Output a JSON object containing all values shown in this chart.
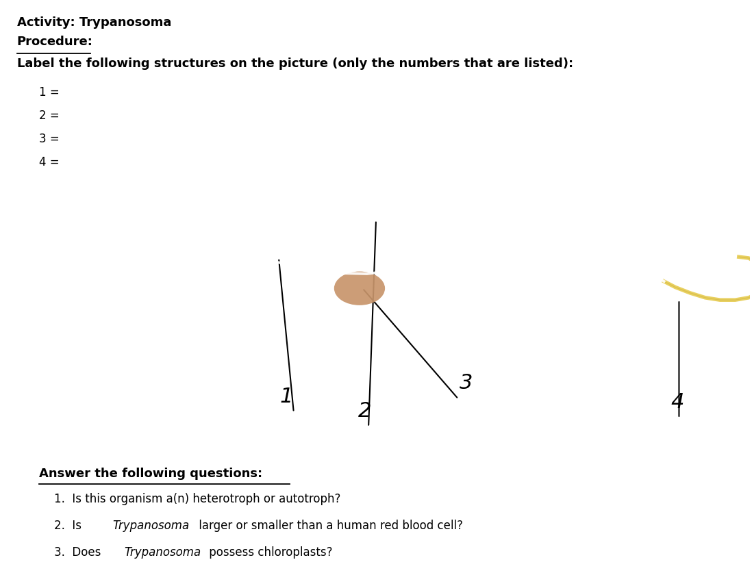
{
  "title_line1": "Activity: Trypanosoma",
  "title_line2": "Procedure:",
  "title_line3": "Label the following structures on the picture (only the numbers that are listed):",
  "labels": [
    "1 =",
    "2 =",
    "3 =",
    "4 ="
  ],
  "answer_header": "Answer the following questions:",
  "q1": "1.  Is this organism a(n) heterotroph or autotroph?",
  "q2_pre": "2.  Is ",
  "q2_italic": "Trypanosoma",
  "q2_post": " larger or smaller than a human red blood cell?",
  "q3_pre": "3.  Does ",
  "q3_italic": "Trypanosoma",
  "q3_post": " possess chloroplasts?",
  "bg_color": "#ffffff",
  "text_color": "#000000",
  "body_color_yellow": "#f0d870",
  "body_color_yellow2": "#f5e898",
  "body_color_purple": "#c9a8d4",
  "body_color_purple2": "#b890c8",
  "body_color_peach": "#d4a882",
  "body_color_dark_purple": "#a880b8",
  "flagellum_color": "#e8d060",
  "nucleus_color": "#c8956b"
}
